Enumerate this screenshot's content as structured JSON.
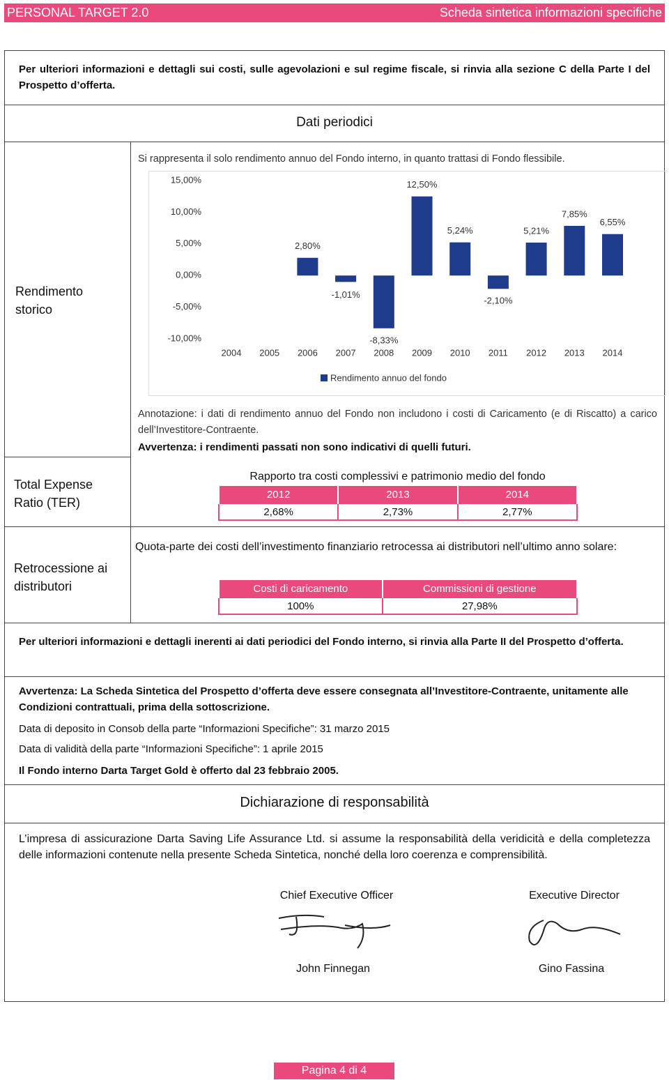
{
  "header": {
    "left": "PERSONAL TARGET 2.0",
    "right": "Scheda sintetica informazioni specifiche"
  },
  "intro": "Per ulteriori informazioni e dettagli sui costi, sulle agevolazioni e sul regime fiscale, si rinvia alla sezione C della Parte I del Prospetto d’offerta.",
  "section_title": "Dati periodici",
  "rendimento": {
    "label": "Rendimento storico",
    "intro": "Si rappresenta il solo rendimento annuo del Fondo interno, in quanto trattasi di Fondo flessibile.",
    "note": "Annotazione: i dati di rendimento annuo del Fondo non includono i costi di Caricamento (e di Riscatto) a carico dell’Investitore-Contraente.",
    "warning": "Avvertenza: i rendimenti passati non sono indicativi di quelli futuri."
  },
  "chart_data": {
    "type": "bar",
    "categories": [
      "2004",
      "2005",
      "2006",
      "2007",
      "2008",
      "2009",
      "2010",
      "2011",
      "2012",
      "2013",
      "2014"
    ],
    "series": [
      {
        "name": "Rendimento annuo del fondo",
        "color": "#1f3b8c",
        "values": [
          null,
          null,
          2.8,
          -1.01,
          -8.33,
          12.5,
          5.24,
          -2.1,
          5.21,
          7.85,
          6.55
        ],
        "value_labels": [
          null,
          null,
          "2,80%",
          "-1,01%",
          "-8,33%",
          "12,50%",
          "5,24%",
          "-2,10%",
          "5,21%",
          "7,85%",
          "6,55%"
        ]
      }
    ],
    "ylim": [
      -10,
      15
    ],
    "yticks": [
      {
        "value": -10,
        "label": "-10,00%"
      },
      {
        "value": -5,
        "label": "-5,00%"
      },
      {
        "value": 0,
        "label": "0,00%"
      },
      {
        "value": 5,
        "label": "5,00%"
      },
      {
        "value": 10,
        "label": "10,00%"
      },
      {
        "value": 15,
        "label": "15,00%"
      }
    ],
    "legend": "bottom"
  },
  "ter": {
    "label": "Total Expense Ratio (TER)",
    "title": "Rapporto tra costi complessivi e patrimonio medio del fondo",
    "table": {
      "header": [
        "2012",
        "2013",
        "2014"
      ],
      "rows": [
        [
          "2,68%",
          "2,73%",
          "2,77%"
        ]
      ]
    }
  },
  "retrocessione": {
    "label": "Retrocessione ai distributori",
    "text": "Quota-parte dei costi dell’investimento finanziario retrocessa ai distributori nell’ultimo anno solare:",
    "table": {
      "header": [
        "Costi di caricamento",
        "Commissioni di gestione"
      ],
      "rows": [
        [
          "100%",
          "27,98%"
        ]
      ]
    }
  },
  "periodic_note": "Per ulteriori informazioni e dettagli inerenti ai dati periodici del Fondo interno, si rinvia alla Parte II del Prospetto d’offerta.",
  "warning": "Avvertenza: La Scheda Sintetica del Prospetto d’offerta deve essere consegnata all’Investitore-Contraente, unitamente alle Condizioni contrattuali, prima della sottoscrizione.",
  "deposit": "Data di deposito in Consob della parte “Informazioni Specifiche”: 31 marzo 2015",
  "validity": "Data di validità della parte “Informazioni Specifiche”: 1 aprile 2015",
  "offer": "Il Fondo interno Darta Target Gold è offerto dal 23 febbraio 2005.",
  "declaration": {
    "title": "Dichiarazione di responsabilità",
    "text": "L’impresa di assicurazione Darta Saving Life Assurance Ltd. si assume la responsabilità della veridicità e della completezza delle informazioni contenute nella presente Scheda Sintetica, nonché della loro coerenza e comprensibilità.",
    "signatories": [
      {
        "role": "Chief Executive Officer",
        "name": "John Finnegan"
      },
      {
        "role": "Executive Director",
        "name": "Gino Fassina"
      }
    ]
  },
  "footer": "Pagina 4 di 4"
}
